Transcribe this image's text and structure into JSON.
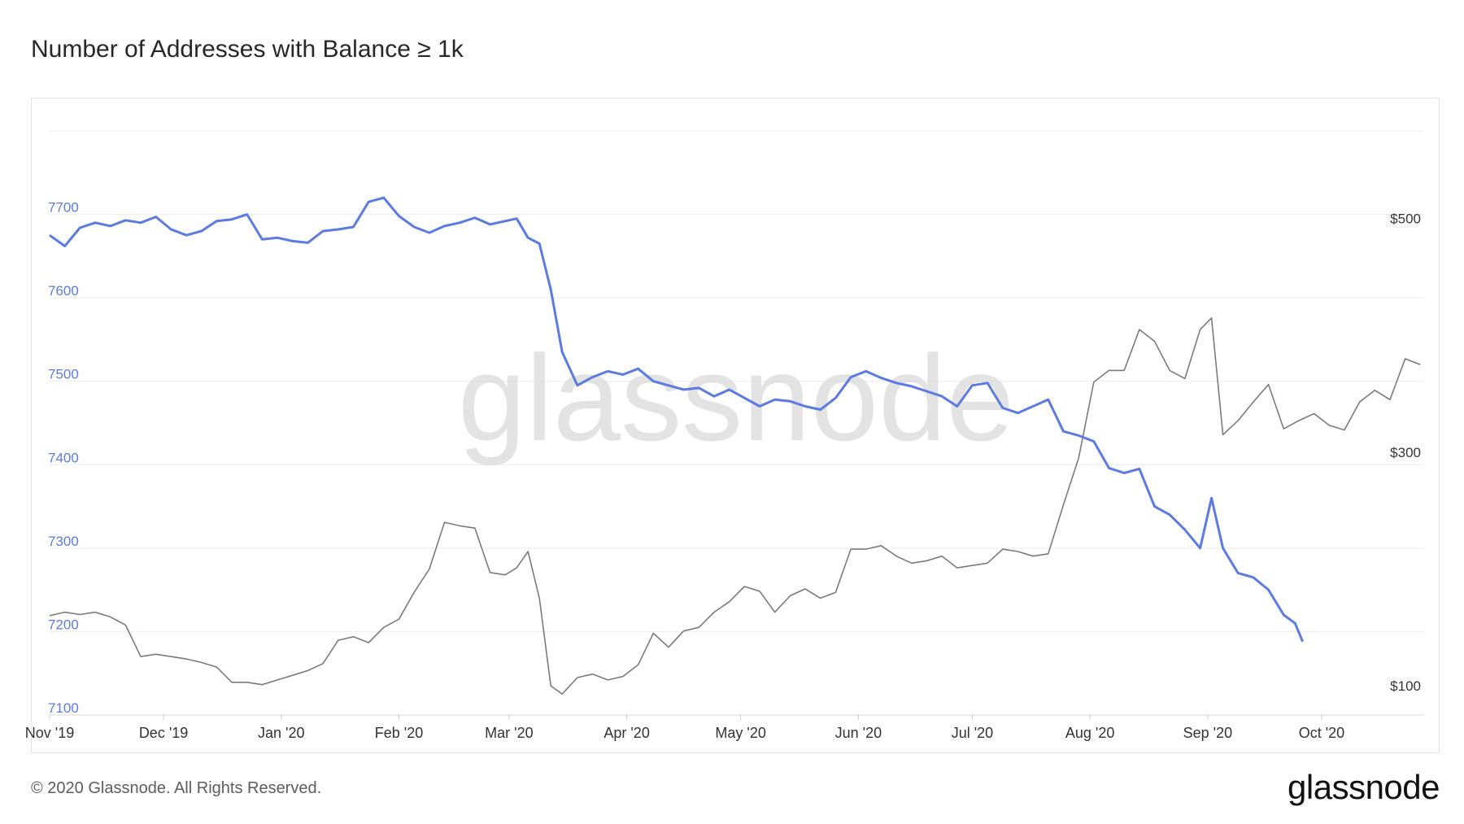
{
  "title": "Number of Addresses with Balance ≥ 1k",
  "footer": {
    "copyright": "© 2020 Glassnode. All Rights Reserved."
  },
  "brand": {
    "logo_text": "glassnode",
    "watermark": "glassnode"
  },
  "colors": {
    "addresses": "#5b7be3",
    "price": "#7b7b7b",
    "grid": "#ececec",
    "left_axis": "#5b7be3",
    "right_axis": "#333333"
  },
  "chart_data": {
    "type": "line",
    "title": "Number of Addresses with Balance ≥ 1k",
    "x_tick_labels": [
      "Nov '19",
      "Dec '19",
      "Jan '20",
      "Feb '20",
      "Mar '20",
      "Apr '20",
      "May '20",
      "Jun '20",
      "Jul '20",
      "Aug '20",
      "Sep '20",
      "Oct '20"
    ],
    "x_range": [
      "2019-11-01",
      "2020-10-28"
    ],
    "y_left": {
      "ticks": [
        7100,
        7200,
        7300,
        7400,
        7500,
        7600,
        7700
      ],
      "range": [
        7100,
        7800
      ]
    },
    "y_right": {
      "ticks": [
        "$100",
        "$300",
        "$500"
      ],
      "range": [
        100,
        600
      ]
    },
    "grid": true,
    "series": [
      {
        "axis": "left",
        "points": [
          [
            "2019-11-01",
            7675
          ],
          [
            "2019-11-05",
            7662
          ],
          [
            "2019-11-09",
            7684
          ],
          [
            "2019-11-13",
            7690
          ],
          [
            "2019-11-17",
            7686
          ],
          [
            "2019-11-21",
            7693
          ],
          [
            "2019-11-25",
            7690
          ],
          [
            "2019-11-29",
            7697
          ],
          [
            "2019-12-03",
            7682
          ],
          [
            "2019-12-07",
            7675
          ],
          [
            "2019-12-11",
            7680
          ],
          [
            "2019-12-15",
            7692
          ],
          [
            "2019-12-19",
            7694
          ],
          [
            "2019-12-23",
            7700
          ],
          [
            "2019-12-27",
            7670
          ],
          [
            "2019-12-31",
            7672
          ],
          [
            "2020-01-04",
            7668
          ],
          [
            "2020-01-08",
            7666
          ],
          [
            "2020-01-12",
            7680
          ],
          [
            "2020-01-16",
            7682
          ],
          [
            "2020-01-20",
            7685
          ],
          [
            "2020-01-24",
            7715
          ],
          [
            "2020-01-28",
            7720
          ],
          [
            "2020-02-01",
            7698
          ],
          [
            "2020-02-05",
            7685
          ],
          [
            "2020-02-09",
            7678
          ],
          [
            "2020-02-13",
            7686
          ],
          [
            "2020-02-17",
            7690
          ],
          [
            "2020-02-21",
            7696
          ],
          [
            "2020-02-25",
            7688
          ],
          [
            "2020-02-29",
            7692
          ],
          [
            "2020-03-03",
            7695
          ],
          [
            "2020-03-06",
            7672
          ],
          [
            "2020-03-09",
            7665
          ],
          [
            "2020-03-12",
            7610
          ],
          [
            "2020-03-15",
            7535
          ],
          [
            "2020-03-19",
            7495
          ],
          [
            "2020-03-23",
            7505
          ],
          [
            "2020-03-27",
            7512
          ],
          [
            "2020-03-31",
            7508
          ],
          [
            "2020-04-04",
            7515
          ],
          [
            "2020-04-08",
            7500
          ],
          [
            "2020-04-12",
            7495
          ],
          [
            "2020-04-16",
            7490
          ],
          [
            "2020-04-20",
            7492
          ],
          [
            "2020-04-24",
            7482
          ],
          [
            "2020-04-28",
            7490
          ],
          [
            "2020-05-02",
            7480
          ],
          [
            "2020-05-06",
            7470
          ],
          [
            "2020-05-10",
            7478
          ],
          [
            "2020-05-14",
            7476
          ],
          [
            "2020-05-18",
            7470
          ],
          [
            "2020-05-22",
            7466
          ],
          [
            "2020-05-26",
            7480
          ],
          [
            "2020-05-30",
            7505
          ],
          [
            "2020-06-03",
            7512
          ],
          [
            "2020-06-07",
            7504
          ],
          [
            "2020-06-11",
            7498
          ],
          [
            "2020-06-15",
            7494
          ],
          [
            "2020-06-19",
            7488
          ],
          [
            "2020-06-23",
            7482
          ],
          [
            "2020-06-27",
            7470
          ],
          [
            "2020-07-01",
            7495
          ],
          [
            "2020-07-05",
            7498
          ],
          [
            "2020-07-09",
            7468
          ],
          [
            "2020-07-13",
            7462
          ],
          [
            "2020-07-17",
            7470
          ],
          [
            "2020-07-21",
            7478
          ],
          [
            "2020-07-25",
            7440
          ],
          [
            "2020-07-29",
            7435
          ],
          [
            "2020-08-02",
            7428
          ],
          [
            "2020-08-06",
            7396
          ],
          [
            "2020-08-10",
            7390
          ],
          [
            "2020-08-14",
            7395
          ],
          [
            "2020-08-18",
            7350
          ],
          [
            "2020-08-22",
            7340
          ],
          [
            "2020-08-26",
            7322
          ],
          [
            "2020-08-30",
            7300
          ],
          [
            "2020-09-02",
            7360
          ],
          [
            "2020-09-05",
            7300
          ],
          [
            "2020-09-09",
            7270
          ],
          [
            "2020-09-13",
            7265
          ],
          [
            "2020-09-17",
            7250
          ],
          [
            "2020-09-21",
            7220
          ],
          [
            "2020-09-24",
            7210
          ],
          [
            "2020-09-26",
            7188
          ]
        ]
      },
      {
        "axis": "right",
        "points": [
          [
            "2019-11-01",
            185
          ],
          [
            "2019-11-05",
            188
          ],
          [
            "2019-11-09",
            186
          ],
          [
            "2019-11-13",
            188
          ],
          [
            "2019-11-17",
            184
          ],
          [
            "2019-11-21",
            177
          ],
          [
            "2019-11-25",
            150
          ],
          [
            "2019-11-29",
            152
          ],
          [
            "2019-12-03",
            150
          ],
          [
            "2019-12-07",
            148
          ],
          [
            "2019-12-11",
            145
          ],
          [
            "2019-12-15",
            141
          ],
          [
            "2019-12-19",
            128
          ],
          [
            "2019-12-23",
            128
          ],
          [
            "2019-12-27",
            126
          ],
          [
            "2019-12-31",
            130
          ],
          [
            "2020-01-04",
            134
          ],
          [
            "2020-01-08",
            138
          ],
          [
            "2020-01-12",
            144
          ],
          [
            "2020-01-16",
            164
          ],
          [
            "2020-01-20",
            167
          ],
          [
            "2020-01-24",
            162
          ],
          [
            "2020-01-28",
            175
          ],
          [
            "2020-02-01",
            182
          ],
          [
            "2020-02-05",
            205
          ],
          [
            "2020-02-09",
            225
          ],
          [
            "2020-02-13",
            265
          ],
          [
            "2020-02-17",
            262
          ],
          [
            "2020-02-21",
            260
          ],
          [
            "2020-02-25",
            222
          ],
          [
            "2020-02-29",
            220
          ],
          [
            "2020-03-03",
            226
          ],
          [
            "2020-03-06",
            240
          ],
          [
            "2020-03-09",
            200
          ],
          [
            "2020-03-12",
            125
          ],
          [
            "2020-03-15",
            118
          ],
          [
            "2020-03-19",
            132
          ],
          [
            "2020-03-23",
            135
          ],
          [
            "2020-03-27",
            130
          ],
          [
            "2020-03-31",
            133
          ],
          [
            "2020-04-04",
            143
          ],
          [
            "2020-04-08",
            170
          ],
          [
            "2020-04-12",
            158
          ],
          [
            "2020-04-16",
            172
          ],
          [
            "2020-04-20",
            175
          ],
          [
            "2020-04-24",
            188
          ],
          [
            "2020-04-28",
            197
          ],
          [
            "2020-05-02",
            210
          ],
          [
            "2020-05-06",
            206
          ],
          [
            "2020-05-10",
            188
          ],
          [
            "2020-05-14",
            202
          ],
          [
            "2020-05-18",
            208
          ],
          [
            "2020-05-22",
            200
          ],
          [
            "2020-05-26",
            205
          ],
          [
            "2020-05-30",
            242
          ],
          [
            "2020-06-03",
            242
          ],
          [
            "2020-06-07",
            245
          ],
          [
            "2020-06-11",
            236
          ],
          [
            "2020-06-15",
            230
          ],
          [
            "2020-06-19",
            232
          ],
          [
            "2020-06-23",
            236
          ],
          [
            "2020-06-27",
            226
          ],
          [
            "2020-07-01",
            228
          ],
          [
            "2020-07-05",
            230
          ],
          [
            "2020-07-09",
            242
          ],
          [
            "2020-07-13",
            240
          ],
          [
            "2020-07-17",
            236
          ],
          [
            "2020-07-21",
            238
          ],
          [
            "2020-07-25",
            280
          ],
          [
            "2020-07-29",
            320
          ],
          [
            "2020-08-02",
            385
          ],
          [
            "2020-08-06",
            395
          ],
          [
            "2020-08-10",
            395
          ],
          [
            "2020-08-14",
            430
          ],
          [
            "2020-08-18",
            420
          ],
          [
            "2020-08-22",
            395
          ],
          [
            "2020-08-26",
            388
          ],
          [
            "2020-08-30",
            430
          ],
          [
            "2020-09-02",
            440
          ],
          [
            "2020-09-05",
            340
          ],
          [
            "2020-09-09",
            352
          ],
          [
            "2020-09-13",
            368
          ],
          [
            "2020-09-17",
            383
          ],
          [
            "2020-09-21",
            345
          ],
          [
            "2020-09-25",
            352
          ],
          [
            "2020-09-29",
            358
          ],
          [
            "2020-10-03",
            348
          ],
          [
            "2020-10-07",
            344
          ],
          [
            "2020-10-11",
            368
          ],
          [
            "2020-10-15",
            378
          ],
          [
            "2020-10-19",
            370
          ],
          [
            "2020-10-23",
            405
          ],
          [
            "2020-10-27",
            400
          ]
        ]
      }
    ]
  }
}
